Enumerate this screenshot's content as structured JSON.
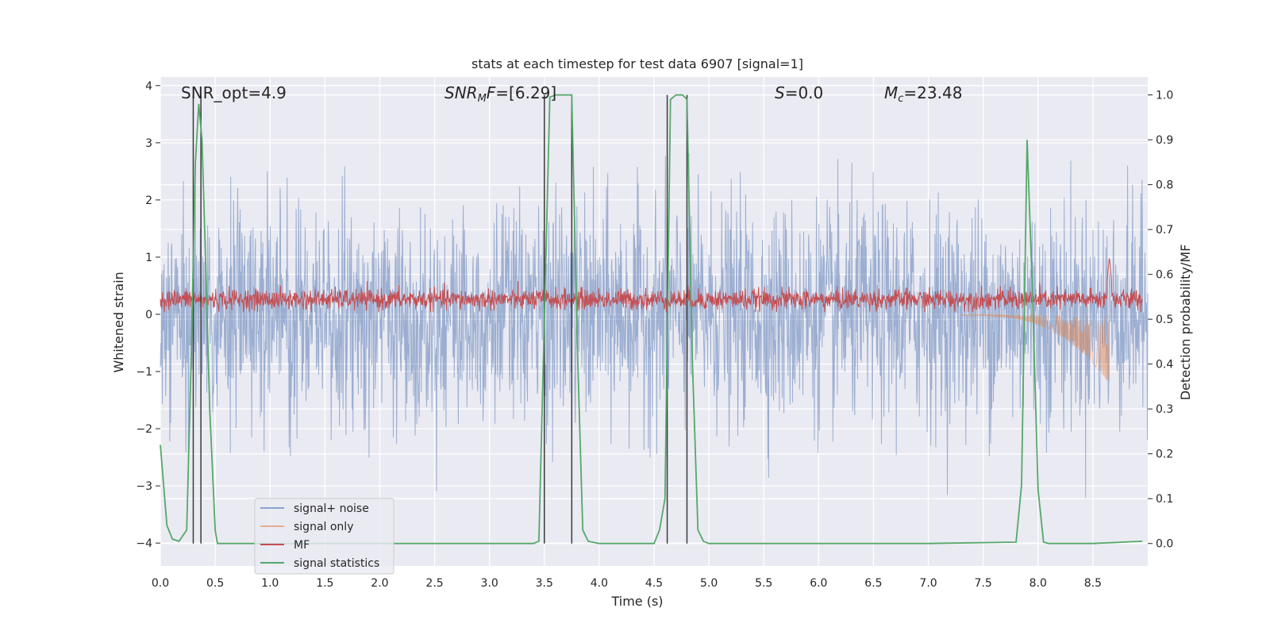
{
  "chart_data": {
    "type": "line",
    "title": "stats at each timestep for test data 6907 [signal=1]",
    "xlabel": "Time (s)",
    "ylabel": "Whitened strain",
    "y2label": "Detection probability/MF",
    "xlim": [
      0.0,
      9.0
    ],
    "ylim": [
      -4.4,
      4.15
    ],
    "y2lim": [
      -0.05,
      1.04
    ],
    "xticks": [
      0.0,
      0.5,
      1.0,
      1.5,
      2.0,
      2.5,
      3.0,
      3.5,
      4.0,
      4.5,
      5.0,
      5.5,
      6.0,
      6.5,
      7.0,
      7.5,
      8.0,
      8.5
    ],
    "xtick_labels": [
      "0.0",
      "0.5",
      "1.0",
      "1.5",
      "2.0",
      "2.5",
      "3.0",
      "3.5",
      "4.0",
      "4.5",
      "5.0",
      "5.5",
      "6.0",
      "6.5",
      "7.0",
      "7.5",
      "8.0",
      "8.5"
    ],
    "yticks": [
      -4,
      -3,
      -2,
      -1,
      0,
      1,
      2,
      3,
      4
    ],
    "ytick_labels": [
      "−4",
      "−3",
      "−2",
      "−1",
      "0",
      "1",
      "2",
      "3",
      "4"
    ],
    "y2ticks": [
      0.0,
      0.1,
      0.2,
      0.3,
      0.4,
      0.5,
      0.6,
      0.7,
      0.8,
      0.9,
      1.0
    ],
    "y2tick_labels": [
      "0.0",
      "0.1",
      "0.2",
      "0.3",
      "0.4",
      "0.5",
      "0.6",
      "0.7",
      "0.8",
      "0.9",
      "1.0"
    ],
    "annotations": [
      {
        "id": "snr-opt",
        "text": "SNR_opt=4.9",
        "x": 0.2,
        "y": 3.8
      },
      {
        "id": "snr-mf",
        "text": "SNR_MF=[6.29]",
        "x": 2.6,
        "y": 3.8
      },
      {
        "id": "s-stat",
        "text": "S=0.0",
        "x": 5.6,
        "y": 3.8
      },
      {
        "id": "mc",
        "text": "M_c=23.48",
        "x": 6.6,
        "y": 3.8
      }
    ],
    "annotation_parts": {
      "snr_opt": "SNR_opt=4.9",
      "snr_mf_base": "SNR",
      "snr_mf_sub": "M",
      "snr_mf_tail": "F",
      "snr_mf_value": "=[6.29]",
      "s_base": "S",
      "s_value": "=0.0",
      "mc_base": "M",
      "mc_sub": "c",
      "mc_value": "=23.48"
    },
    "vertical_lines": [
      0.3,
      0.37,
      3.5,
      3.75,
      4.62,
      4.8
    ],
    "series": [
      {
        "name": "signal+ noise",
        "color": "#4c72b0",
        "opacity": 0.5,
        "description": "whitened strain noise, std approx 1, range about -3.6 to 3.8"
      },
      {
        "name": "signal only",
        "color": "#dd8452",
        "opacity": 0.5,
        "description": "chirp in tail, 7.3 s to 8.65 s, peak about -1.2"
      },
      {
        "name": "MF",
        "color": "#c44e52",
        "description": "matched filter output, oscillates 0.1-0.5 on left axis, spike to 1.0 at 8.65 s"
      },
      {
        "name": "signal statistics",
        "color": "#55a868",
        "axis": "right",
        "x": [
          0.0,
          0.06,
          0.11,
          0.17,
          0.24,
          0.28,
          0.32,
          0.35,
          0.38,
          0.41,
          0.45,
          0.5,
          0.52,
          1.0,
          2.0,
          3.0,
          3.4,
          3.45,
          3.5,
          3.55,
          3.6,
          3.7,
          3.75,
          3.8,
          3.85,
          3.9,
          4.0,
          4.5,
          4.55,
          4.6,
          4.65,
          4.7,
          4.76,
          4.8,
          4.85,
          4.9,
          4.95,
          5.0,
          6.0,
          7.0,
          7.8,
          7.85,
          7.9,
          7.95,
          8.0,
          8.05,
          8.1,
          8.5,
          8.95
        ],
        "y": [
          0.22,
          0.04,
          0.01,
          0.005,
          0.03,
          0.4,
          0.85,
          0.98,
          0.9,
          0.65,
          0.3,
          0.03,
          0.0,
          0.0,
          0.0,
          0.0,
          0.0,
          0.005,
          0.5,
          0.995,
          1.0,
          1.0,
          1.0,
          0.45,
          0.03,
          0.005,
          0.0,
          0.0,
          0.03,
          0.1,
          0.99,
          1.0,
          1.0,
          0.99,
          0.4,
          0.03,
          0.005,
          0.0,
          0.0,
          0.0,
          0.003,
          0.13,
          0.9,
          0.55,
          0.12,
          0.003,
          0.0,
          0.0,
          0.005
        ]
      }
    ],
    "legend": {
      "placement": "lower-left",
      "entries": [
        "signal+ noise",
        "signal only",
        "MF",
        "signal statistics"
      ]
    }
  }
}
